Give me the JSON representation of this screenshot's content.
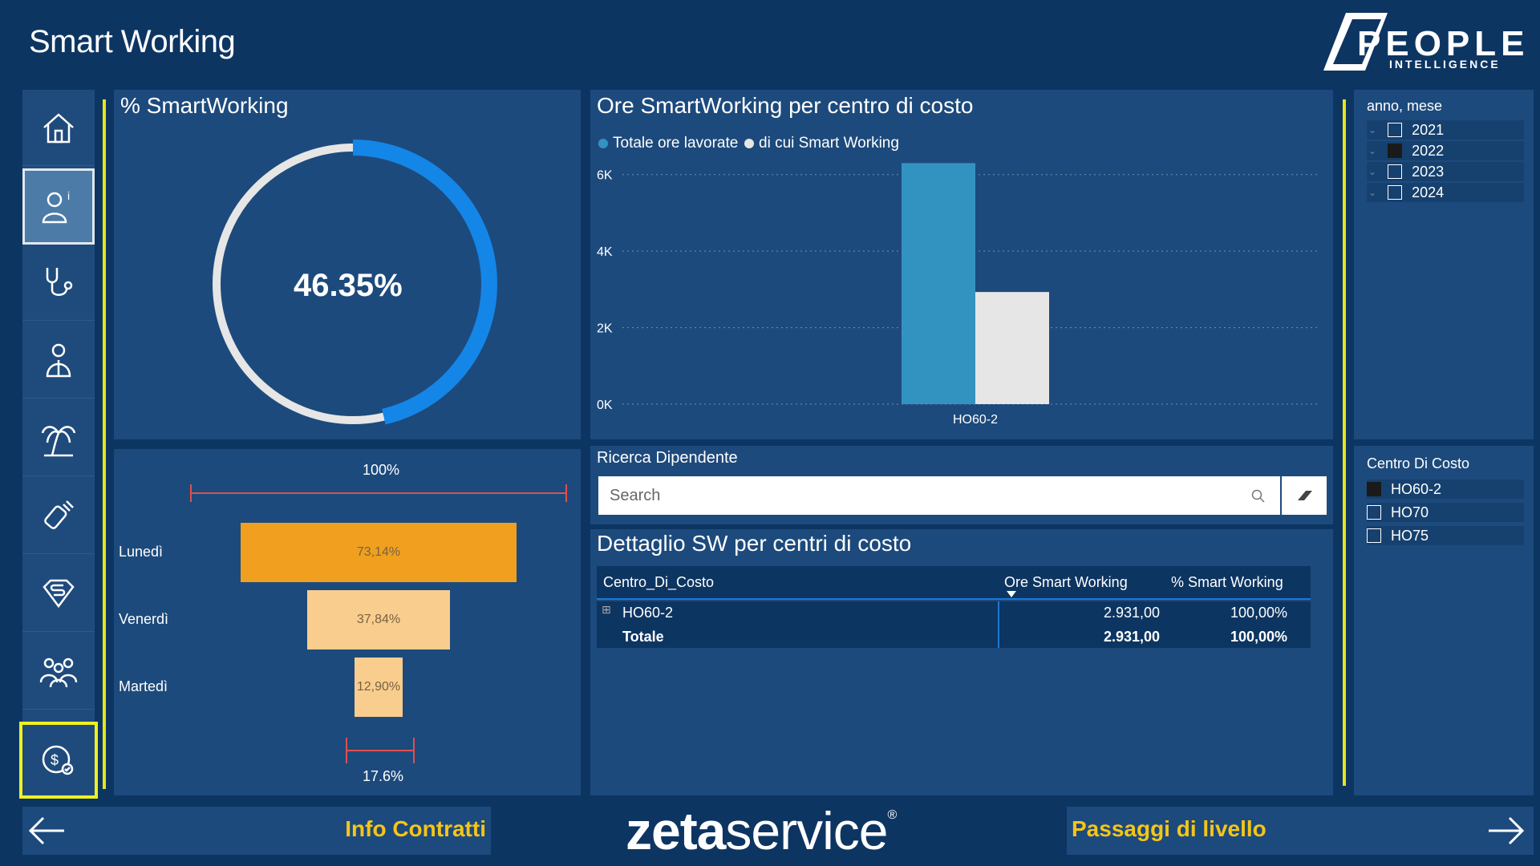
{
  "header": {
    "title": "Smart Working",
    "logo_main": "PEOPLE",
    "logo_sub": "INTELLIGENCE"
  },
  "sidebar": {
    "items": [
      {
        "name": "home-icon"
      },
      {
        "name": "employee-info-icon"
      },
      {
        "name": "stethoscope-icon"
      },
      {
        "name": "person-icon"
      },
      {
        "name": "palm-tree-icon"
      },
      {
        "name": "baby-bottle-icon"
      },
      {
        "name": "superman-icon"
      },
      {
        "name": "group-icon"
      },
      {
        "name": "money-icon"
      }
    ]
  },
  "smartworking_gauge": {
    "title": "% SmartWorking",
    "value_label": "46.35%",
    "value": 46.35
  },
  "funnel": {
    "top_label": "100%",
    "bottom_label": "17.6%",
    "rows": [
      {
        "day": "Lunedì",
        "label": "73,14%",
        "value": 73.14,
        "color": "#f0a01e"
      },
      {
        "day": "Venerdì",
        "label": "37,84%",
        "value": 37.84,
        "color": "#f9cd8e"
      },
      {
        "day": "Martedì",
        "label": "12,90%",
        "value": 12.9,
        "color": "#f9cd8e"
      }
    ]
  },
  "chart_data": {
    "type": "bar",
    "title": "Ore SmartWorking per centro di costo",
    "categories": [
      "HO60-2"
    ],
    "series": [
      {
        "name": "Totale ore lavorate",
        "values": [
          6300
        ],
        "color": "#3393c0"
      },
      {
        "name": "di cui Smart Working",
        "values": [
          2931
        ],
        "color": "#e6e6e6"
      }
    ],
    "y_ticks": [
      "0K",
      "2K",
      "4K",
      "6K"
    ],
    "ylim": [
      0,
      7000
    ],
    "legend": "top-left",
    "grid": true
  },
  "search": {
    "title": "Ricerca Dipendente",
    "placeholder": "Search"
  },
  "table": {
    "title": "Dettaglio SW per centri di costo",
    "columns": [
      "Centro_Di_Costo",
      "Ore Smart Working",
      "% Smart Working"
    ],
    "rows": [
      {
        "centro": "HO60-2",
        "ore": "2.931,00",
        "perc": "100,00%",
        "expand": "⊞"
      }
    ],
    "total": {
      "label": "Totale",
      "ore": "2.931,00",
      "perc": "100,00%"
    }
  },
  "slicer_anno": {
    "title": "anno, mese",
    "items": [
      {
        "label": "2021",
        "checked": false
      },
      {
        "label": "2022",
        "checked": true
      },
      {
        "label": "2023",
        "checked": false
      },
      {
        "label": "2024",
        "checked": false
      }
    ]
  },
  "slicer_centro": {
    "title": "Centro Di Costo",
    "items": [
      {
        "label": "HO60-2",
        "checked": true
      },
      {
        "label": "HO70",
        "checked": false
      },
      {
        "label": "HO75",
        "checked": false
      }
    ]
  },
  "footer": {
    "prev_label": "Info Contratti",
    "next_label": "Passaggi di livello",
    "brand_bold": "zeta",
    "brand_light": "service",
    "brand_mark": "®"
  }
}
